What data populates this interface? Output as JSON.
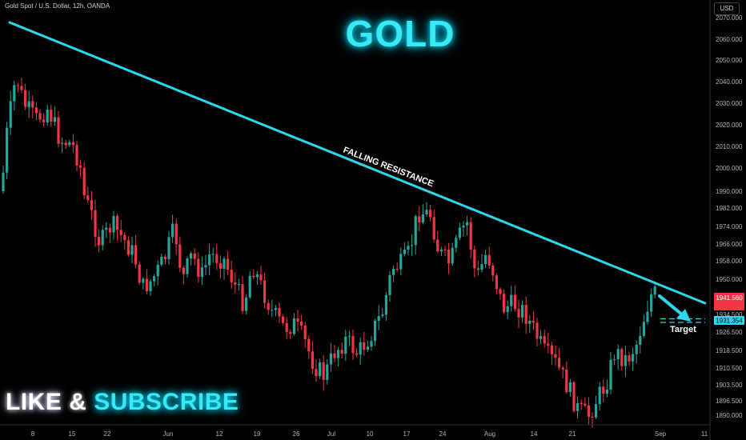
{
  "header": {
    "symbol_text": "Gold Spot / U.S. Dollar, 12h, OANDA",
    "currency": "USD"
  },
  "overlay": {
    "title": "GOLD",
    "like": "LIKE",
    "amp": "&",
    "subscribe": "SUBSCRIBE"
  },
  "chart_data": {
    "type": "candlestick",
    "symbol": "Gold Spot / U.S. Dollar",
    "interval": "12h",
    "source": "OANDA",
    "y_axis": {
      "side": "right",
      "ticks": [
        2070.0,
        2060.0,
        2050.0,
        2040.0,
        2030.0,
        2020.0,
        2010.0,
        2000.0,
        1990.0,
        1982.0,
        1974.0,
        1966.0,
        1958.0,
        1950.0,
        1934.5,
        1926.5,
        1918.5,
        1910.5,
        1903.5,
        1896.5,
        1890.0
      ]
    },
    "x_axis": {
      "labels": [
        "8",
        "15",
        "22",
        "Jun",
        "12",
        "19",
        "26",
        "Jul",
        "10",
        "17",
        "24",
        "Aug",
        "14",
        "21",
        "Sep",
        "11"
      ]
    },
    "price_labels": [
      {
        "value": "1941.560",
        "kind": "current",
        "color": "#f23645"
      },
      {
        "value": "1931.354",
        "kind": "target",
        "color": "#2ad9ec"
      }
    ],
    "annotations": {
      "trendline_label": "FALLING RESISTANCE",
      "target_label": "Target"
    },
    "colors": {
      "up": "#26a69a",
      "down": "#f23645",
      "trendline": "#2ad9ec",
      "background": "#000000"
    }
  }
}
